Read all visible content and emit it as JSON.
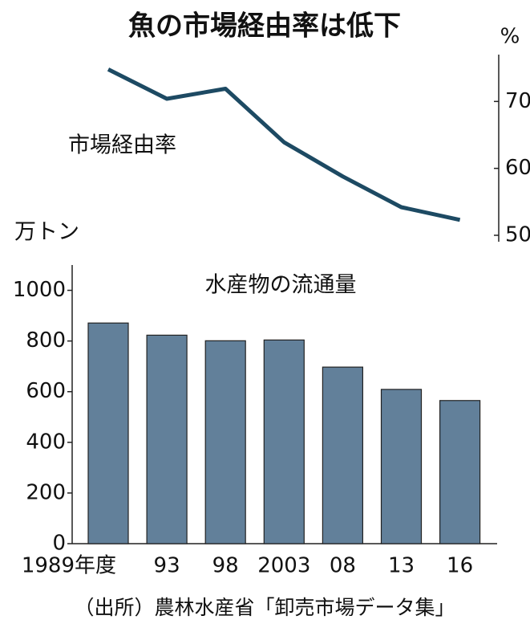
{
  "title": "魚の市場経由率は低下",
  "source": "（出所）農林水産省「卸売市場データ集」",
  "chart_data": [
    {
      "type": "line",
      "label": "市場経由率",
      "unit": "%",
      "color": "#1d4a63",
      "values": [
        74.8,
        70.4,
        71.9,
        63.9,
        58.8,
        54.2,
        52.3
      ],
      "ylim": [
        50,
        77
      ],
      "yticks": [
        50,
        60,
        70
      ]
    },
    {
      "type": "bar",
      "label": "水産物の流通量",
      "unit": "万トン",
      "color": "#62809a",
      "categories": [
        "1989年度",
        "93",
        "98",
        "2003",
        "08",
        "13",
        "16"
      ],
      "values": [
        871,
        823,
        801,
        804,
        697,
        609,
        565
      ],
      "ylim": [
        0,
        1100
      ],
      "yticks": [
        0,
        200,
        400,
        600,
        800,
        1000
      ]
    }
  ]
}
